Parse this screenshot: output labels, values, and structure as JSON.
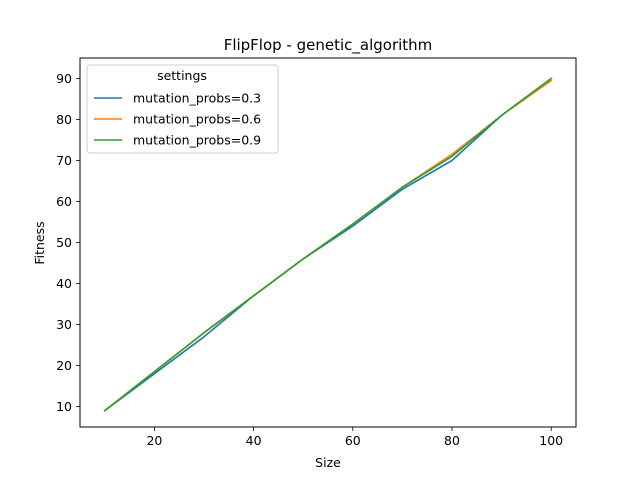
{
  "chart_data": {
    "type": "line",
    "title": "FlipFlop - genetic_algorithm",
    "xlabel": "Size",
    "ylabel": "Fitness",
    "xlim": [
      5,
      105
    ],
    "ylim": [
      5,
      95
    ],
    "xticks": [
      20,
      40,
      60,
      80,
      100
    ],
    "yticks": [
      10,
      20,
      30,
      40,
      50,
      60,
      70,
      80,
      90
    ],
    "grid": false,
    "legend": {
      "title": "settings",
      "position": "top-left"
    },
    "x": [
      10,
      20,
      30,
      40,
      50,
      60,
      70,
      80,
      90,
      100
    ],
    "series": [
      {
        "name": "mutation_probs=0.3",
        "color": "#1f77b4",
        "values": [
          9,
          18,
          27,
          37,
          46,
          54,
          63,
          70,
          81,
          90
        ]
      },
      {
        "name": "mutation_probs=0.6",
        "color": "#ff7f0e",
        "values": [
          9,
          18.5,
          28,
          37,
          46,
          54.5,
          63.5,
          71.5,
          81,
          89.5
        ]
      },
      {
        "name": "mutation_probs=0.9",
        "color": "#2ca02c",
        "values": [
          9,
          18.5,
          28,
          37,
          46,
          54.5,
          63.5,
          71,
          81,
          90
        ]
      }
    ]
  }
}
